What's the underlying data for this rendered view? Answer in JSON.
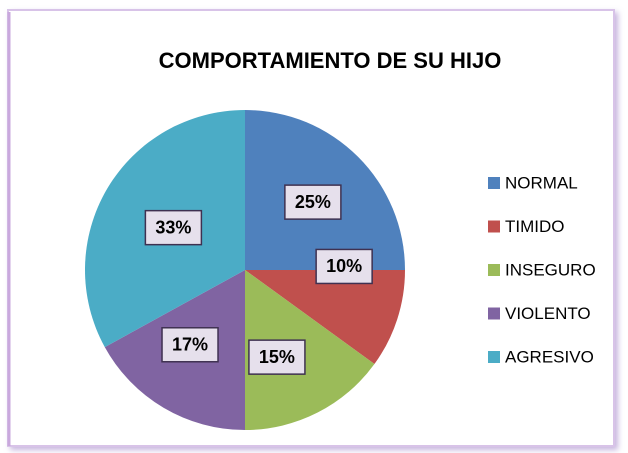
{
  "chart_data": {
    "type": "pie",
    "title": "COMPORTAMIENTO DE SU HIJO",
    "categories": [
      "NORMAL",
      "TIMIDO",
      "INSEGURO",
      "VIOLENTO",
      "AGRESIVO"
    ],
    "values": [
      25,
      10,
      15,
      17,
      33
    ],
    "value_labels": [
      "25%",
      "10%",
      "15%",
      "17%",
      "33%"
    ],
    "colors": [
      "#4f81bd",
      "#c0504d",
      "#9bbb59",
      "#8064a2",
      "#4bacc6"
    ],
    "legend": "right"
  }
}
